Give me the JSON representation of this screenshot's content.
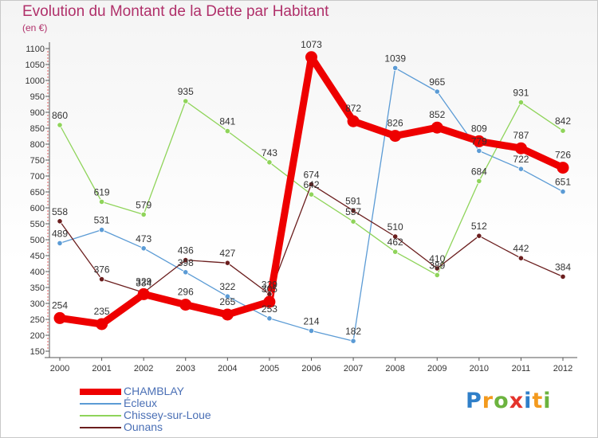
{
  "header": {
    "title": "Evolution du Montant de la Dette par Habitant",
    "subtitle": "(en €)"
  },
  "logo": {
    "letters": [
      "P",
      "r",
      "o",
      "x",
      "i",
      "t",
      "i"
    ],
    "colors": [
      "#2f7fc9",
      "#f39a1e",
      "#6cb33f",
      "#e4332b",
      "#2f7fc9",
      "#f39a1e",
      "#6cb33f"
    ]
  },
  "chart_data": {
    "type": "line",
    "title": "Evolution du Montant de la Dette par Habitant",
    "subtitle": "(en €)",
    "xlabel": "",
    "ylabel": "",
    "x": [
      "2000",
      "2001",
      "2002",
      "2003",
      "2004",
      "2005",
      "2006",
      "2007",
      "2008",
      "2009",
      "2010",
      "2011",
      "2012"
    ],
    "ylim": [
      150,
      1100
    ],
    "yticks": [
      150,
      200,
      250,
      300,
      350,
      400,
      450,
      500,
      550,
      600,
      650,
      700,
      750,
      800,
      850,
      900,
      950,
      1000,
      1050,
      1100
    ],
    "grid": false,
    "legend_position": "bottom-left",
    "series": [
      {
        "name": "CHAMBLAY",
        "color": "#ee0000",
        "values": [
          254,
          235,
          329,
          296,
          265,
          305,
          1073,
          872,
          826,
          852,
          809,
          787,
          726
        ]
      },
      {
        "name": "Écleux",
        "color": "#5b9bd5",
        "values": [
          489,
          531,
          473,
          398,
          322,
          253,
          214,
          182,
          1039,
          965,
          779,
          722,
          651
        ]
      },
      {
        "name": "Chissey-sur-Loue",
        "color": "#8fd45a",
        "values": [
          860,
          619,
          579,
          935,
          841,
          743,
          642,
          557,
          462,
          389,
          684,
          931,
          842
        ]
      },
      {
        "name": "Ounans",
        "color": "#6b1e1e",
        "values": [
          558,
          376,
          334,
          436,
          427,
          329,
          674,
          591,
          510,
          410,
          512,
          442,
          384
        ]
      }
    ]
  }
}
